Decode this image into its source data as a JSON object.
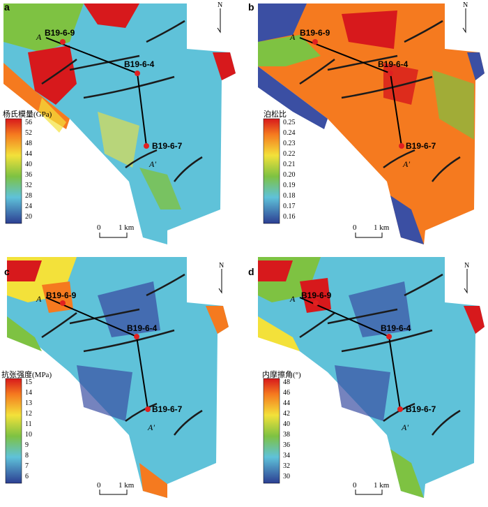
{
  "panels": [
    {
      "id": "a",
      "label": "a",
      "colorbar_title": "杨氏模量(GPa)",
      "ticks": [
        "56",
        "52",
        "48",
        "44",
        "40",
        "36",
        "32",
        "28",
        "24",
        "20"
      ],
      "north": "N",
      "wells": [
        "B19-6-9",
        "B19-6-4",
        "B19-6-7"
      ],
      "section_start": "A",
      "section_end": "A'",
      "scale_zero": "0",
      "scale_unit": "1 km"
    },
    {
      "id": "b",
      "label": "b",
      "colorbar_title": "泊松比",
      "ticks": [
        "0.25",
        "0.24",
        "0.23",
        "0.22",
        "0.21",
        "0.20",
        "0.19",
        "0.18",
        "0.17",
        "0.16"
      ],
      "north": "N",
      "wells": [
        "B19-6-9",
        "B19-6-4",
        "B19-6-7"
      ],
      "section_start": "A",
      "section_end": "A'",
      "scale_zero": "0",
      "scale_unit": "1 km"
    },
    {
      "id": "c",
      "label": "c",
      "colorbar_title": "抗张强度(MPa)",
      "ticks": [
        "15",
        "14",
        "13",
        "12",
        "11",
        "10",
        "9",
        "8",
        "7",
        "6"
      ],
      "north": "N",
      "wells": [
        "B19-6-9",
        "B19-6-4",
        "B19-6-7"
      ],
      "section_start": "A",
      "section_end": "A'",
      "scale_zero": "0",
      "scale_unit": "1 km"
    },
    {
      "id": "d",
      "label": "d",
      "colorbar_title": "内摩擦角(°)",
      "ticks": [
        "48",
        "46",
        "44",
        "42",
        "40",
        "38",
        "36",
        "34",
        "32",
        "30"
      ],
      "north": "N",
      "wells": [
        "B19-6-9",
        "B19-6-4",
        "B19-6-7"
      ],
      "section_start": "A",
      "section_end": "A'",
      "scale_zero": "0",
      "scale_unit": "1 km"
    }
  ],
  "colors": {
    "red": "#e8261e",
    "orange": "#f58a1f",
    "yellow": "#f3e13a",
    "green": "#7ec242",
    "cyan": "#5fc2d9",
    "blue": "#3b4fa3",
    "well_dot": "#e02020"
  }
}
